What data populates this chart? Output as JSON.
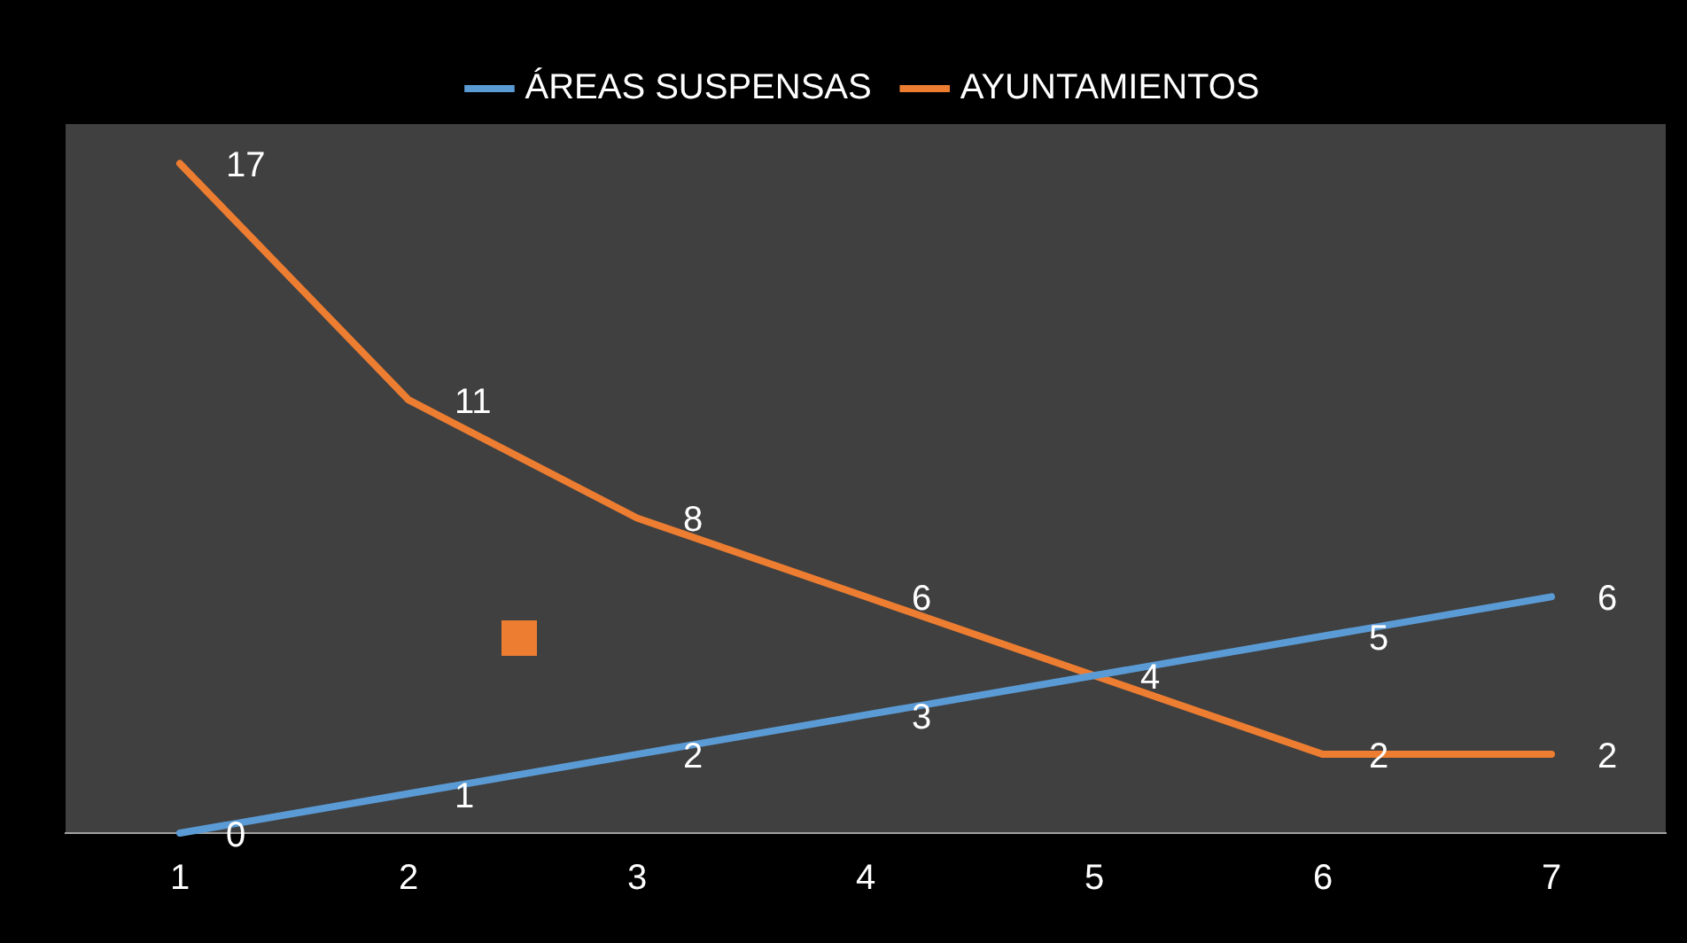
{
  "chart_data": {
    "type": "line",
    "categories": [
      "1",
      "2",
      "3",
      "4",
      "5",
      "6",
      "7"
    ],
    "series": [
      {
        "name": "ÁREAS SUSPENSAS",
        "color": "#5b9bd5",
        "values": [
          0,
          1,
          2,
          3,
          4,
          5,
          6
        ],
        "value_labels": [
          "0",
          "1",
          "2",
          "3",
          null,
          "5",
          "6"
        ]
      },
      {
        "name": "AYUNTAMIENTOS",
        "color": "#ed7d31",
        "values": [
          17,
          11,
          8,
          6,
          4,
          2,
          2
        ],
        "value_labels": [
          "17",
          "11",
          "8",
          "6",
          "4",
          "2",
          "2"
        ]
      }
    ],
    "legend": "top",
    "grid": false,
    "marker": "none",
    "line_style": "solid",
    "tick_labels": "x"
  }
}
